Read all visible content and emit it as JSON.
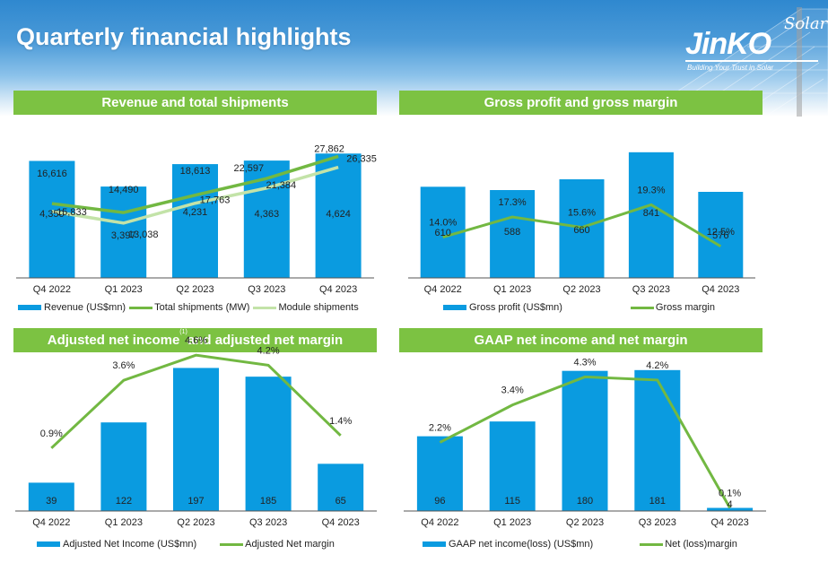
{
  "page": {
    "title": "Quarterly financial highlights"
  },
  "logo": {
    "name": "JinKO",
    "script": "Solar",
    "tagline": "Building Your Trust in Solar"
  },
  "colors": {
    "bar": "#0a9be0",
    "line_primary": "#72b842",
    "line_secondary": "#c3e3a8",
    "section_header": "#7cc242"
  },
  "chart_data": [
    {
      "id": "revenue",
      "type": "bar",
      "title": "Revenue and total shipments",
      "categories": [
        "Q4 2022",
        "Q1 2023",
        "Q2 2023",
        "Q3 2023",
        "Q4 2023"
      ],
      "series": [
        {
          "name": "Revenue (US$mn)",
          "kind": "bar",
          "values": [
            4350,
            3397,
            4231,
            4363,
            4624
          ],
          "labels": [
            "4,350",
            "3,397",
            "4,231",
            "4,363",
            "4,624"
          ]
        },
        {
          "name": "Total shipments (MW)",
          "kind": "line",
          "values": [
            16616,
            14490,
            18613,
            22597,
            27862
          ],
          "labels": [
            "16,616",
            "14,490",
            "18,613",
            "22,597",
            "27,862"
          ]
        },
        {
          "name": "Module shipments",
          "kind": "line",
          "values": [
            15833,
            13038,
            17763,
            21384,
            26335
          ],
          "labels": [
            "15,833",
            "13,038",
            "17,763",
            "21,384",
            "26,335"
          ]
        }
      ],
      "legend": [
        "Revenue (US$mn)",
        "Total shipments (MW)",
        "Module shipments"
      ],
      "legend_position": "bottom",
      "grid": false
    },
    {
      "id": "gross",
      "type": "bar",
      "title": "Gross profit and gross margin",
      "categories": [
        "Q4 2022",
        "Q1 2023",
        "Q2 2023",
        "Q3 2023",
        "Q4 2023"
      ],
      "series": [
        {
          "name": "Gross profit (US$mn)",
          "kind": "bar",
          "values": [
            610,
            588,
            660,
            841,
            576
          ],
          "labels": [
            "610",
            "588",
            "660",
            "841",
            "576"
          ]
        },
        {
          "name": "Gross margin",
          "kind": "line",
          "values": [
            14.0,
            17.3,
            15.6,
            19.3,
            12.5
          ],
          "labels": [
            "14.0%",
            "17.3%",
            "15.6%",
            "19.3%",
            "12.5%"
          ]
        }
      ],
      "legend": [
        "Gross profit (US$mn)",
        "Gross margin"
      ],
      "legend_position": "bottom",
      "grid": false
    },
    {
      "id": "adjusted",
      "type": "bar",
      "title": "Adjusted net income",
      "title_sup": "(1)",
      "title_rest": "and adjusted net margin",
      "categories": [
        "Q4 2022",
        "Q1 2023",
        "Q2 2023",
        "Q3 2023",
        "Q4 2023"
      ],
      "series": [
        {
          "name": "Adjusted Net Income (US$mn)",
          "kind": "bar",
          "values": [
            39,
            122,
            197,
            185,
            65
          ],
          "labels": [
            "39",
            "122",
            "197",
            "185",
            "65"
          ]
        },
        {
          "name": "Adjusted Net margin",
          "kind": "line",
          "values": [
            0.9,
            3.6,
            4.6,
            4.2,
            1.4
          ],
          "labels": [
            "0.9%",
            "3.6%",
            "4.6%",
            "4.2%",
            "1.4%"
          ]
        }
      ],
      "legend": [
        "Adjusted Net Income (US$mn)",
        "Adjusted Net margin"
      ],
      "legend_position": "bottom",
      "grid": false
    },
    {
      "id": "gaap",
      "type": "bar",
      "title": "GAAP net income and net margin",
      "categories": [
        "Q4 2022",
        "Q1 2023",
        "Q2 2023",
        "Q3 2023",
        "Q4 2023"
      ],
      "series": [
        {
          "name": "GAAP net income(loss) (US$mn)",
          "kind": "bar",
          "values": [
            96,
            115,
            180,
            181,
            4
          ],
          "labels": [
            "96",
            "115",
            "180",
            "181",
            "4"
          ]
        },
        {
          "name": "Net (loss)margin",
          "kind": "line",
          "values": [
            2.2,
            3.4,
            4.3,
            4.2,
            0.1
          ],
          "labels": [
            "2.2%",
            "3.4%",
            "4.3%",
            "4.2%",
            "0.1%"
          ]
        }
      ],
      "legend": [
        "GAAP net income(loss) (US$mn)",
        "Net (loss)margin"
      ],
      "legend_position": "bottom",
      "grid": false
    }
  ]
}
